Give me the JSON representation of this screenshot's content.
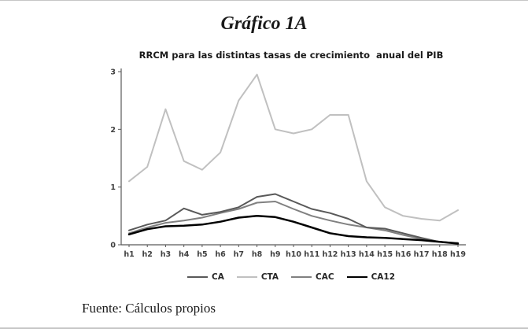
{
  "page": {
    "title": "Gráfico 1A",
    "source": "Fuente: Cálculos propios"
  },
  "chart_data": {
    "type": "line",
    "title": "RRCM para las distintas tasas de crecimiento  anual del PIB",
    "categories": [
      "h1",
      "h2",
      "h3",
      "h4",
      "h5",
      "h6",
      "h7",
      "h8",
      "h9",
      "h10",
      "h11",
      "h12",
      "h13",
      "h14",
      "h15",
      "h16",
      "h17",
      "h18",
      "h19"
    ],
    "series": [
      {
        "name": "CA",
        "color": "#595959",
        "width": 2,
        "values": [
          0.25,
          0.35,
          0.42,
          0.63,
          0.52,
          0.57,
          0.65,
          0.83,
          0.88,
          0.75,
          0.62,
          0.55,
          0.45,
          0.3,
          0.28,
          0.2,
          0.12,
          0.05,
          0.03
        ]
      },
      {
        "name": "CTA",
        "color": "#c0c0c0",
        "width": 2,
        "values": [
          1.1,
          1.35,
          2.35,
          1.45,
          1.3,
          1.6,
          2.5,
          2.95,
          2.0,
          1.93,
          2.0,
          2.25,
          2.25,
          1.1,
          0.65,
          0.5,
          0.45,
          0.42,
          0.6
        ]
      },
      {
        "name": "CAC",
        "color": "#808080",
        "width": 2,
        "values": [
          0.2,
          0.3,
          0.38,
          0.42,
          0.47,
          0.55,
          0.62,
          0.73,
          0.75,
          0.62,
          0.5,
          0.42,
          0.35,
          0.3,
          0.25,
          0.17,
          0.1,
          0.05,
          0.03
        ]
      },
      {
        "name": "CA12",
        "color": "#000000",
        "width": 2.5,
        "values": [
          0.18,
          0.27,
          0.32,
          0.33,
          0.35,
          0.4,
          0.47,
          0.5,
          0.48,
          0.4,
          0.3,
          0.2,
          0.15,
          0.13,
          0.12,
          0.1,
          0.08,
          0.05,
          0.02
        ]
      }
    ],
    "ylim": [
      0,
      3
    ],
    "yticks": [
      0,
      1,
      2,
      3
    ],
    "xlabel": "",
    "ylabel": "",
    "grid": false,
    "legend_position": "bottom"
  }
}
